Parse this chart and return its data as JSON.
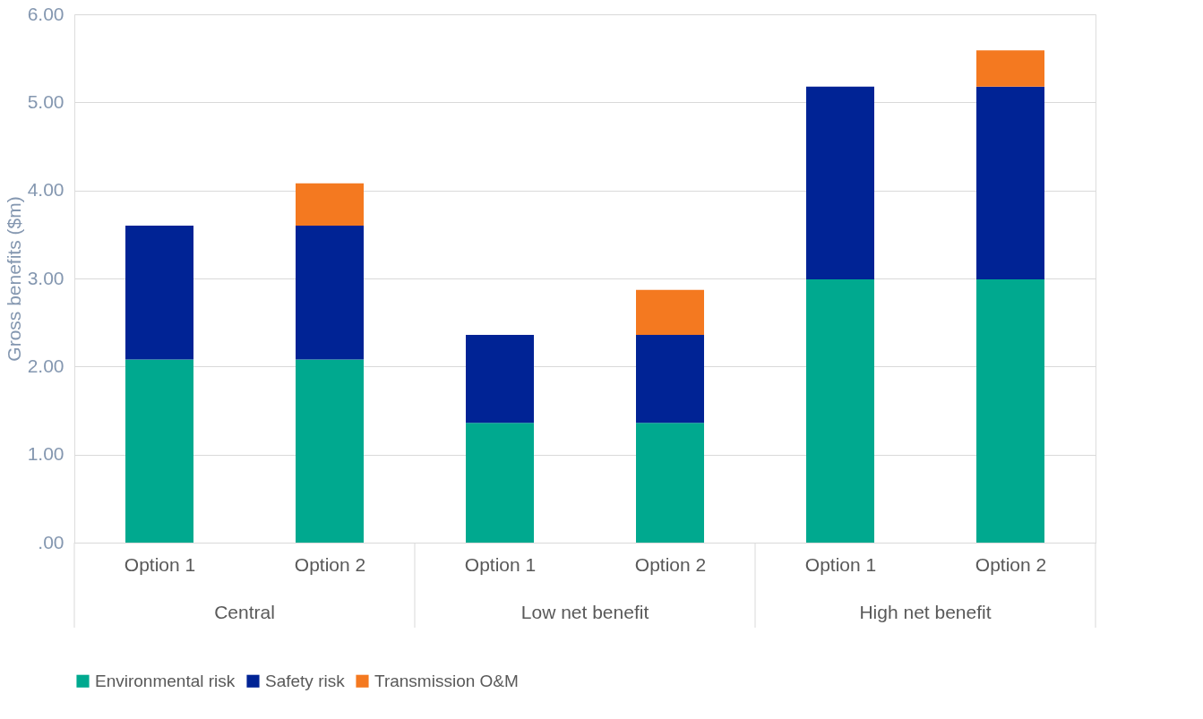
{
  "chart_data": {
    "type": "bar",
    "stacked": true,
    "ylabel": "Gross benefits ($m)",
    "categories": [
      "Option 1",
      "Option 2",
      "Option 1",
      "Option 2",
      "Option 1",
      "Option 2"
    ],
    "annotations": [
      "Central",
      "Low net benefit",
      "High net benefit"
    ],
    "series": [
      {
        "name": "Environmental risk",
        "color": "#00a98f",
        "values": [
          2.08,
          2.08,
          1.36,
          1.36,
          2.99,
          2.99
        ]
      },
      {
        "name": "Safety risk",
        "color": "#002395",
        "values": [
          1.52,
          1.52,
          1.0,
          1.0,
          2.19,
          2.19
        ]
      },
      {
        "name": "Transmission  O&M",
        "color": "#f47920",
        "values": [
          null,
          0.48,
          null,
          0.51,
          null,
          0.41
        ]
      }
    ],
    "ylim": [
      0,
      6
    ],
    "yticks": [
      {
        "value": 0,
        "label": ".00"
      },
      {
        "value": 1,
        "label": "1.00"
      },
      {
        "value": 2,
        "label": "2.00"
      },
      {
        "value": 3,
        "label": "3.00"
      },
      {
        "value": 4,
        "label": "4.00"
      },
      {
        "value": 5,
        "label": "5.00"
      },
      {
        "value": 6,
        "label": "6.00"
      }
    ],
    "grid": "y",
    "legend": "bottom"
  }
}
